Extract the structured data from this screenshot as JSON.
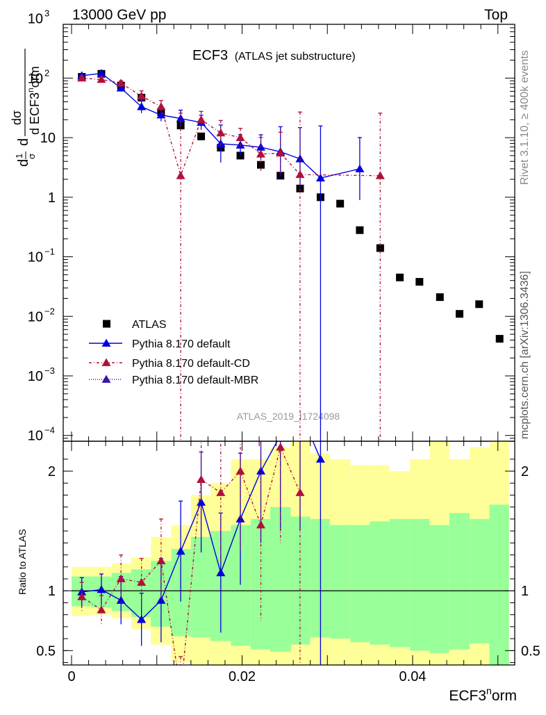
{
  "header": {
    "beam": "13000 GeV pp",
    "process": "Top",
    "side_right": "Rivet 3.1.10, ≥ 400k events",
    "side_right2": "mcplots.cern.ch [arXiv:1306.3436]",
    "watermark": "ATLAS_2019_I1724098"
  },
  "chart_data": [
    {
      "type": "scatter",
      "title": "ECF3",
      "subtitle": "(ATLAS jet substructure)",
      "xlabel": "ECF3^norm",
      "ylabel_num": "dσ",
      "ylabel_den": "d ECF3norm",
      "ylabel_prefix": "1/σ d",
      "yscale": "log",
      "ylim": [
        8e-05,
        800
      ],
      "xlim": [
        -0.0015,
        0.0515
      ],
      "y_ticks": [
        {
          "v": 0.0001,
          "base": "10",
          "exp": "−4"
        },
        {
          "v": 0.001,
          "base": "10",
          "exp": "−3"
        },
        {
          "v": 0.01,
          "base": "10",
          "exp": "−2"
        },
        {
          "v": 0.1,
          "base": "10",
          "exp": "−1"
        },
        {
          "v": 1,
          "base": "1",
          "exp": ""
        },
        {
          "v": 10,
          "base": "10",
          "exp": ""
        },
        {
          "v": 100,
          "base": "10",
          "exp": "2"
        },
        {
          "v": 1000,
          "base": "10",
          "exp": "3"
        }
      ],
      "legend": [
        "ATLAS",
        "Pythia 8.170 default",
        "Pythia 8.170 default-CD",
        "Pythia 8.170 default-MBR"
      ],
      "series": [
        {
          "name": "ATLAS",
          "color": "#000000",
          "x": [
            0.0012,
            0.0035,
            0.0058,
            0.0082,
            0.0105,
            0.0128,
            0.0152,
            0.0175,
            0.0198,
            0.0222,
            0.0245,
            0.0268,
            0.0292,
            0.0315,
            0.0338,
            0.0362,
            0.0385,
            0.0408,
            0.0432,
            0.0455,
            0.0478,
            0.0502
          ],
          "y": [
            105,
            118,
            75,
            47,
            27,
            16,
            10.5,
            6.8,
            5.0,
            3.5,
            2.3,
            1.4,
            1.0,
            0.78,
            0.28,
            0.14,
            0.045,
            0.038,
            0.021,
            0.011,
            0.016,
            0.0042
          ]
        },
        {
          "name": "Pythia 8.170 default",
          "color": "#0000dd",
          "x": [
            0.0012,
            0.0035,
            0.0058,
            0.0082,
            0.0105,
            0.0128,
            0.0152,
            0.0175,
            0.0198,
            0.0222,
            0.0245,
            0.0268,
            0.0292,
            0.0338
          ],
          "y": [
            110,
            120,
            68,
            33,
            24,
            21,
            18,
            7.9,
            7.5,
            6.9,
            5.8,
            4.4,
            2.1,
            3.0
          ],
          "err": [
            0.1,
            0.1,
            0.15,
            0.3,
            0.3,
            0.4,
            0.35,
            0.9,
            0.5,
            0.6,
            1.2,
            1.5,
            2.5,
            1.5
          ]
        },
        {
          "name": "Pythia 8.170 default-CD",
          "color": "#b0103a",
          "x": [
            0.0012,
            0.0035,
            0.0058,
            0.0082,
            0.0105,
            0.0128,
            0.0152,
            0.0175,
            0.0198,
            0.0222,
            0.0245,
            0.0268,
            0.0362
          ],
          "y": [
            100,
            95,
            82,
            50,
            33,
            2.3,
            20,
            12,
            10,
            5.3,
            5.5,
            2.4,
            2.3
          ],
          "err": [
            0.1,
            0.12,
            0.12,
            0.25,
            0.3,
            3,
            0.4,
            0.6,
            0.45,
            0.8,
            1.0,
            3,
            3
          ]
        }
      ]
    },
    {
      "type": "line",
      "ylabel": "Ratio to ATLAS",
      "xlabel": "ECF3^norm",
      "ylim": [
        0.38,
        2.25
      ],
      "y_ticks": [
        0.5,
        1,
        2
      ],
      "x_ticks": [
        0,
        0.02,
        0.04
      ],
      "x_tick_labels": [
        "0",
        "0.02",
        "0.04"
      ],
      "bins": [
        0,
        0.0023,
        0.0047,
        0.007,
        0.0093,
        0.0117,
        0.014,
        0.0163,
        0.0187,
        0.021,
        0.0233,
        0.0257,
        0.028,
        0.0303,
        0.0327,
        0.035,
        0.0373,
        0.0397,
        0.042,
        0.0443,
        0.0467,
        0.049,
        0.0513
      ],
      "band_yellow_lo": [
        0.79,
        0.8,
        0.77,
        0.68,
        0.55,
        0.4,
        0.35,
        0.35,
        0.35,
        0.35,
        0.35,
        0.35,
        0.35,
        0.35,
        0.35,
        0.35,
        0.35,
        0.35,
        0.35,
        0.35,
        0.35,
        0.35
      ],
      "band_yellow_hi": [
        1.2,
        1.2,
        1.23,
        1.28,
        1.45,
        1.55,
        1.8,
        1.9,
        2.1,
        2.1,
        2.2,
        2.3,
        2.15,
        2.1,
        2.05,
        2.05,
        2.0,
        2.1,
        2.3,
        2.1,
        2.2,
        2.3
      ],
      "band_green_lo": [
        0.87,
        0.86,
        0.83,
        0.78,
        0.7,
        0.62,
        0.61,
        0.58,
        0.54,
        0.51,
        0.49,
        0.55,
        0.61,
        0.6,
        0.57,
        0.55,
        0.53,
        0.5,
        0.48,
        0.51,
        0.56,
        0.35
      ],
      "band_green_hi": [
        1.12,
        1.12,
        1.15,
        1.18,
        1.25,
        1.35,
        1.45,
        1.5,
        1.55,
        1.6,
        1.7,
        1.62,
        1.6,
        1.55,
        1.55,
        1.58,
        1.6,
        1.6,
        1.55,
        1.65,
        1.6,
        1.72
      ],
      "series": [
        {
          "name": "Pythia 8.170 default",
          "color": "#0000dd",
          "x": [
            0.0012,
            0.0035,
            0.0058,
            0.0082,
            0.0105,
            0.0128,
            0.0152,
            0.0175,
            0.0198,
            0.0222,
            0.0245,
            0.0268,
            0.0292
          ],
          "y": [
            0.99,
            1.01,
            0.92,
            0.76,
            0.92,
            1.33,
            1.74,
            1.15,
            1.6,
            2.0,
            2.3,
            2.5,
            2.1
          ],
          "err": [
            0.12,
            0.13,
            0.2,
            0.22,
            0.35,
            0.42,
            0.42,
            0.5,
            0.55,
            0.6,
            0.8,
            1.0,
            2.2
          ]
        },
        {
          "name": "Pythia 8.170 default-CD",
          "color": "#b0103a",
          "x": [
            0.0012,
            0.0035,
            0.0058,
            0.0082,
            0.0105,
            0.0128,
            0.0152,
            0.0175,
            0.0198,
            0.0222,
            0.0245,
            0.0268
          ],
          "y": [
            0.95,
            0.84,
            1.1,
            1.07,
            1.25,
            0.15,
            1.93,
            1.82,
            2.0,
            1.55,
            2.2,
            1.82
          ],
          "err": [
            0.12,
            0.12,
            0.2,
            0.2,
            0.35,
            0.3,
            0.35,
            0.6,
            0.65,
            0.8,
            0.8,
            1.5
          ]
        }
      ]
    }
  ]
}
